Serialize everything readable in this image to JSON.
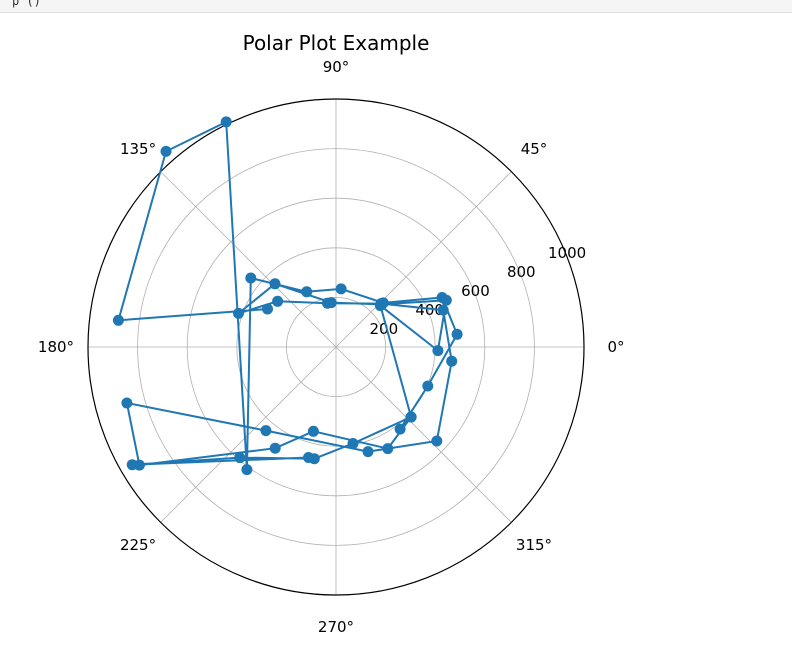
{
  "notebook": {
    "code_fragment": "p        ()"
  },
  "chart_data": {
    "type": "polar-line",
    "title": "Polar Plot Example",
    "theta_ticks": [
      "0°",
      "45°",
      "90°",
      "135°",
      "180°",
      "225°",
      "270°",
      "315°"
    ],
    "theta_tick_degrees": [
      0,
      45,
      90,
      135,
      180,
      225,
      270,
      315
    ],
    "r_ticks": [
      "200",
      "400",
      "600",
      "800",
      "1000"
    ],
    "r_tick_values": [
      200,
      400,
      600,
      800,
      1000
    ],
    "rlim": [
      0,
      1000
    ],
    "grid": true,
    "series": [
      {
        "color": "#1f77b4",
        "marker": "circle",
        "points": [
          {
            "theta": 151,
            "r": 316
          },
          {
            "theta": 173,
            "r": 884
          },
          {
            "theta": 131,
            "r": 1045
          },
          {
            "theta": 116,
            "r": 1010
          },
          {
            "theta": 234,
            "r": 611
          },
          {
            "theta": 141,
            "r": 442
          },
          {
            "theta": 118,
            "r": 252
          },
          {
            "theta": 85,
            "r": 235
          },
          {
            "theta": 43,
            "r": 261
          },
          {
            "theta": 25,
            "r": 472
          },
          {
            "theta": 6,
            "r": 491
          },
          {
            "theta": 337,
            "r": 402
          },
          {
            "theta": 308,
            "r": 420
          },
          {
            "theta": 317,
            "r": 414
          },
          {
            "theta": 297,
            "r": 460
          },
          {
            "theta": 255,
            "r": 352
          },
          {
            "theta": 239,
            "r": 476
          },
          {
            "theta": 211,
            "r": 925
          },
          {
            "theta": 195,
            "r": 873
          },
          {
            "theta": 230,
            "r": 440
          },
          {
            "theta": 287,
            "r": 441
          },
          {
            "theta": 317,
            "r": 556
          },
          {
            "theta": 353,
            "r": 470
          },
          {
            "theta": 19,
            "r": 457
          },
          {
            "theta": 44,
            "r": 252
          },
          {
            "theta": 101,
            "r": 180
          },
          {
            "theta": 142,
            "r": 299
          },
          {
            "theta": 161,
            "r": 416
          },
          {
            "theta": 134,
            "r": 354
          },
          {
            "theta": 96,
            "r": 180
          },
          {
            "theta": 43,
            "r": 252
          },
          {
            "theta": 23,
            "r": 483
          },
          {
            "theta": 358,
            "r": 411
          },
          {
            "theta": 43,
            "r": 245
          },
          {
            "theta": 317,
            "r": 414
          },
          {
            "theta": 280,
            "r": 395
          },
          {
            "theta": 259,
            "r": 459
          },
          {
            "theta": 229,
            "r": 591
          },
          {
            "theta": 210,
            "r": 949
          },
          {
            "theta": 256,
            "r": 459
          }
        ]
      }
    ]
  }
}
